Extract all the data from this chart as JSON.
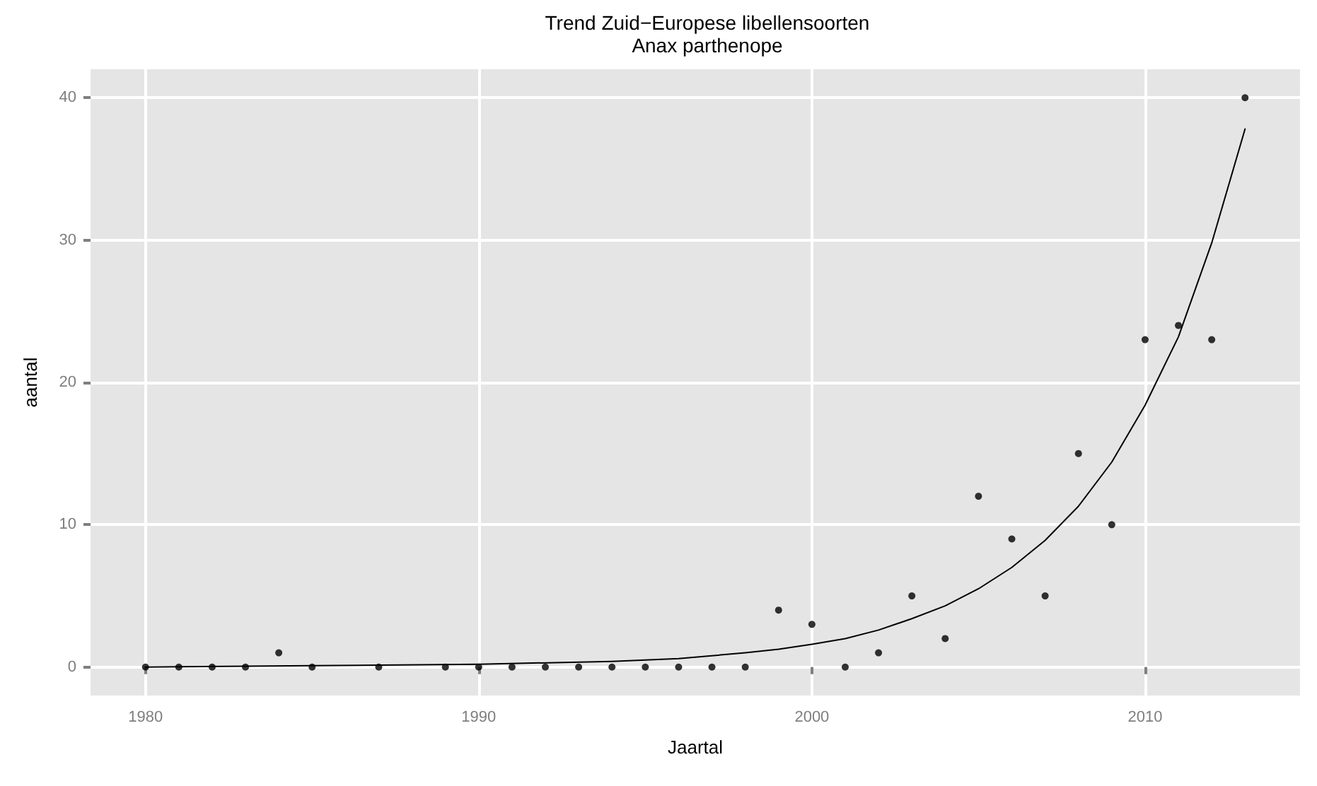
{
  "chart_data": {
    "type": "scatter",
    "title": "Trend Zuid−Europese libellensoorten",
    "subtitle": "Anax parthenope",
    "xlabel": "Jaartal",
    "ylabel": "aantal",
    "xlim": [
      1978.35,
      2014.65
    ],
    "xticks": [
      1980,
      1990,
      2000,
      2010
    ],
    "ylim": [
      -2,
      42
    ],
    "yticks": [
      0,
      10,
      20,
      30,
      40
    ],
    "grid": true,
    "series": [
      {
        "color": "#000000",
        "marker": "circle",
        "x": [
          1980,
          1981,
          1982,
          1983,
          1984,
          1985,
          1987,
          1989,
          1990,
          1991,
          1992,
          1993,
          1994,
          1995,
          1996,
          1997,
          1998,
          1999,
          2000,
          2001,
          2002,
          2003,
          2004,
          2005,
          2006,
          2007,
          2008,
          2009,
          2010,
          2011,
          2012,
          2013
        ],
        "values": [
          0,
          0,
          0,
          0,
          1,
          0,
          0,
          0,
          0,
          0,
          0,
          0,
          0,
          0,
          0,
          0,
          0,
          4,
          3,
          0,
          1,
          5,
          2,
          12,
          9,
          5,
          15,
          10,
          23,
          24,
          23,
          40
        ]
      },
      {
        "type": "line",
        "color": "#000000",
        "marker": "none",
        "line_style": "solid",
        "x": [
          1980,
          1985,
          1990,
          1994,
          1996,
          1998,
          1999,
          2000,
          2001,
          2002,
          2003,
          2004,
          2005,
          2006,
          2007,
          2008,
          2009,
          2010,
          2011,
          2012,
          2013
        ],
        "values": [
          0,
          0.1,
          0.2,
          0.4,
          0.6,
          1.0,
          1.25,
          1.6,
          2.0,
          2.6,
          3.4,
          4.3,
          5.5,
          7.0,
          8.9,
          11.3,
          14.4,
          18.4,
          23.2,
          29.8,
          37.8
        ]
      }
    ]
  }
}
